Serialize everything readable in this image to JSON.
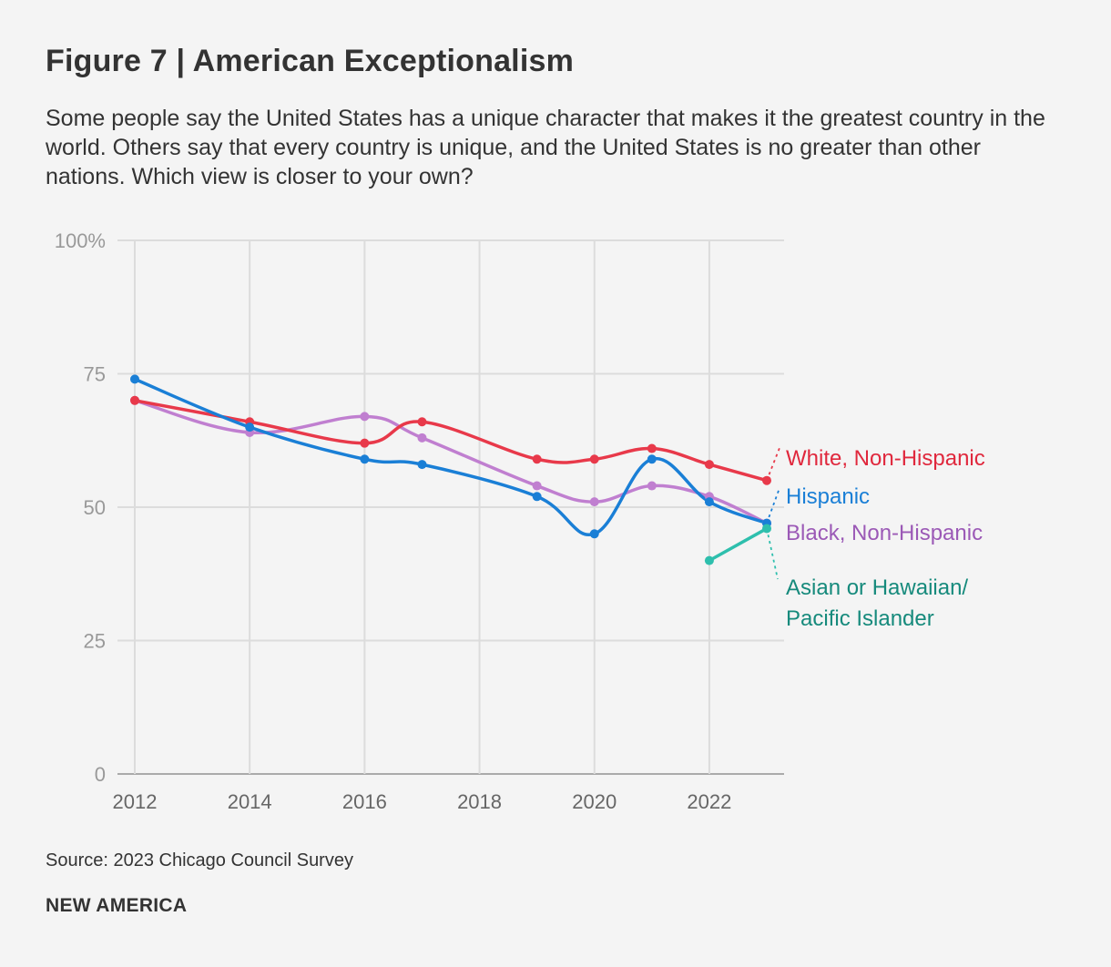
{
  "header": {
    "title": "Figure 7 | American Exceptionalism",
    "subtitle": "Some people say the United States has a unique character that makes it the greatest country in the world. Others say that every country is unique, and the United States is no greater than other nations. Which view is closer to your own?"
  },
  "footer": {
    "source": "Source: 2023 Chicago Council Survey",
    "brand": "NEW AMERICA"
  },
  "chart_data": {
    "type": "line",
    "title": "Figure 7 | American Exceptionalism",
    "xlabel": "",
    "ylabel": "",
    "xlim": [
      2012,
      2023
    ],
    "ylim": [
      0,
      100
    ],
    "x_ticks": [
      2012,
      2014,
      2016,
      2018,
      2020,
      2022
    ],
    "x_tick_labels": [
      "2012",
      "2014",
      "2016",
      "2018",
      "2020",
      "2022"
    ],
    "y_ticks": [
      0,
      25,
      50,
      75,
      100
    ],
    "y_tick_labels": [
      "0",
      "25",
      "50",
      "75",
      "100%"
    ],
    "grid": true,
    "legend": "right (direct labels)",
    "series": [
      {
        "name": "White, Non-Hispanic",
        "color": "#e8394a",
        "label_color": "#e0283d",
        "x": [
          2012,
          2014,
          2016,
          2017,
          2019,
          2020,
          2021,
          2022,
          2023
        ],
        "values": [
          70,
          66,
          62,
          66,
          59,
          59,
          61,
          58,
          55
        ]
      },
      {
        "name": "Hispanic",
        "color": "#1a7fd6",
        "label_color": "#1a7fd6",
        "x": [
          2012,
          2014,
          2016,
          2017,
          2019,
          2020,
          2021,
          2022,
          2023
        ],
        "values": [
          74,
          65,
          59,
          58,
          52,
          45,
          59,
          51,
          47
        ]
      },
      {
        "name": "Black, Non-Hispanic",
        "color": "#c07fd0",
        "label_color": "#9b59b6",
        "x": [
          2012,
          2014,
          2016,
          2017,
          2019,
          2020,
          2021,
          2022,
          2023
        ],
        "values": [
          70,
          64,
          67,
          63,
          54,
          51,
          54,
          52,
          47
        ]
      },
      {
        "name": "Asian or Hawaiian/ Pacific Islander",
        "label_lines": [
          "Asian or Hawaiian/",
          "Pacific Islander"
        ],
        "color": "#2ebfad",
        "label_color": "#168a7c",
        "x": [
          2022,
          2023
        ],
        "values": [
          40,
          46
        ]
      }
    ]
  }
}
